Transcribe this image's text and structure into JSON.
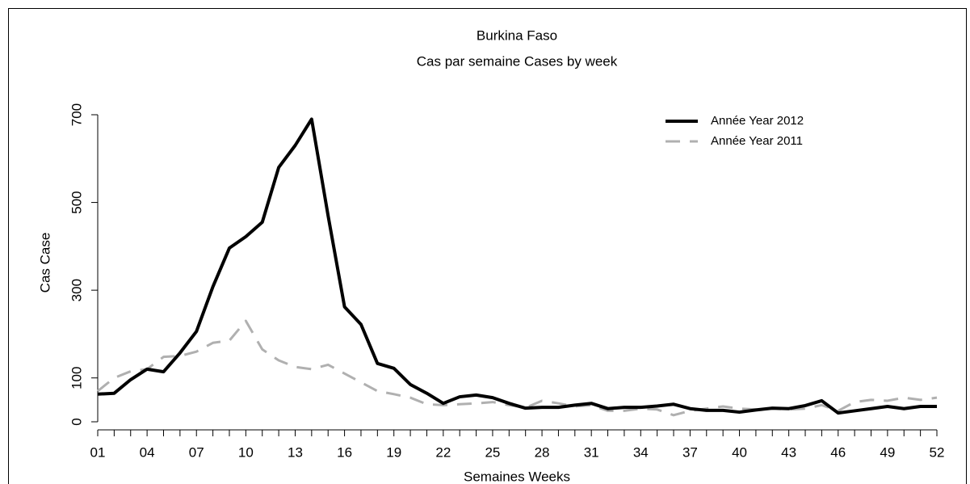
{
  "chart_data": {
    "type": "line",
    "title": "Burkina Faso",
    "subtitle": "Cas par semaine Cases by week",
    "x_label": "Semaines Weeks",
    "y_label": "Cas Case",
    "categories": [
      "01",
      null,
      null,
      "04",
      null,
      null,
      "07",
      null,
      null,
      "10",
      null,
      null,
      "13",
      null,
      null,
      "16",
      null,
      null,
      "19",
      null,
      null,
      "22",
      null,
      null,
      "25",
      null,
      null,
      "28",
      null,
      null,
      "31",
      null,
      null,
      "34",
      null,
      null,
      "37",
      null,
      null,
      "40",
      null,
      null,
      "43",
      null,
      null,
      "46",
      null,
      null,
      "49",
      null,
      null,
      "52"
    ],
    "series": [
      {
        "name": "Année Year 2012",
        "color": "#000000",
        "values": [
          63,
          65,
          96,
          120,
          114,
          157,
          206,
          308,
          396,
          422,
          455,
          580,
          630,
          690,
          470,
          262,
          222,
          133,
          122,
          85,
          65,
          42,
          57,
          61,
          55,
          42,
          31,
          33,
          33,
          38,
          42,
          30,
          33,
          33,
          36,
          40,
          30,
          26,
          26,
          22,
          27,
          31,
          30,
          37,
          48,
          20,
          25,
          30,
          35,
          30,
          35,
          35
        ]
      },
      {
        "name": "Année Year 2011",
        "color": "#b0b0b0",
        "values": [
          70,
          100,
          115,
          120,
          148,
          150,
          160,
          180,
          185,
          230,
          165,
          140,
          125,
          120,
          130,
          110,
          90,
          70,
          63,
          55,
          40,
          38,
          40,
          42,
          45,
          38,
          32,
          48,
          42,
          35,
          38,
          25,
          25,
          30,
          28,
          15,
          25,
          30,
          35,
          30,
          28,
          30,
          28,
          30,
          38,
          25,
          45,
          50,
          48,
          55,
          50,
          55
        ]
      }
    ],
    "ylim": [
      0,
      700
    ],
    "yticks": [
      0,
      100,
      300,
      500,
      700
    ],
    "legend": "top-right",
    "grid": false
  }
}
